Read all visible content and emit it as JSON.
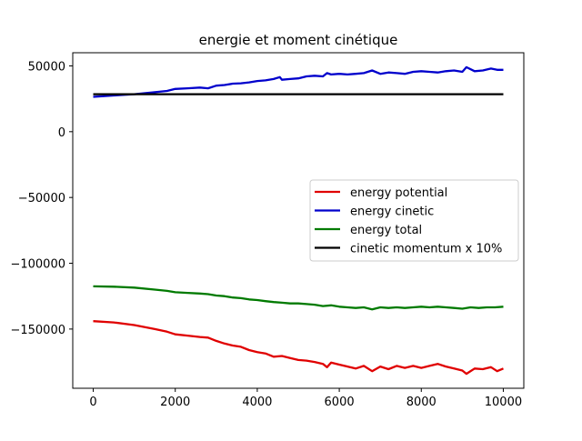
{
  "chart_data": {
    "type": "line",
    "title": "energie et moment cinétique",
    "xlabel": "",
    "ylabel": "",
    "xlim": [
      -500,
      10500
    ],
    "ylim": [
      -195000,
      60000
    ],
    "xticks": [
      0,
      2000,
      4000,
      6000,
      8000,
      10000
    ],
    "xtick_labels": [
      "0",
      "2000",
      "4000",
      "6000",
      "8000",
      "10000"
    ],
    "yticks": [
      50000,
      0,
      -50000,
      -100000,
      -150000
    ],
    "ytick_labels": [
      "50000",
      "0",
      "−50000",
      "−100000",
      "−150000"
    ],
    "grid": false,
    "legend_position": "center-right",
    "series": [
      {
        "name": "energy potential",
        "color": "#e00000",
        "x": [
          0,
          500,
          1000,
          1500,
          1800,
          2000,
          2300,
          2600,
          2800,
          3000,
          3200,
          3400,
          3600,
          3800,
          4000,
          4200,
          4400,
          4600,
          4800,
          5000,
          5200,
          5400,
          5600,
          5700,
          5800,
          6000,
          6200,
          6400,
          6600,
          6800,
          7000,
          7200,
          7400,
          7600,
          7800,
          8000,
          8200,
          8400,
          8600,
          8800,
          9000,
          9100,
          9300,
          9500,
          9700,
          9850,
          10000
        ],
        "y": [
          -144000,
          -145000,
          -147000,
          -150000,
          -152000,
          -154000,
          -155000,
          -156000,
          -156500,
          -159000,
          -161000,
          -162500,
          -163500,
          -166000,
          -167500,
          -168500,
          -171000,
          -170500,
          -172000,
          -173500,
          -174000,
          -175000,
          -176500,
          -179000,
          -175500,
          -177000,
          -178500,
          -180000,
          -178000,
          -182000,
          -178500,
          -180500,
          -178000,
          -179500,
          -178000,
          -179500,
          -178000,
          -176500,
          -178500,
          -180000,
          -181500,
          -184000,
          -180000,
          -180500,
          -179000,
          -182000,
          -180000
        ]
      },
      {
        "name": "energy cinetic",
        "color": "#0000cc",
        "x": [
          0,
          500,
          1000,
          1500,
          1800,
          2000,
          2300,
          2600,
          2800,
          3000,
          3200,
          3400,
          3600,
          3800,
          4000,
          4200,
          4400,
          4550,
          4600,
          4800,
          5000,
          5200,
          5400,
          5600,
          5700,
          5800,
          6000,
          6200,
          6400,
          6600,
          6800,
          7000,
          7200,
          7400,
          7600,
          7800,
          8000,
          8200,
          8400,
          8600,
          8800,
          9000,
          9100,
          9300,
          9500,
          9700,
          9850,
          10000
        ],
        "y": [
          26500,
          27500,
          28500,
          30000,
          31000,
          32500,
          33000,
          33500,
          33000,
          35000,
          35500,
          36500,
          36800,
          37500,
          38500,
          39000,
          40000,
          41500,
          39500,
          40000,
          40500,
          42000,
          42500,
          42000,
          44500,
          43500,
          44000,
          43500,
          44000,
          44500,
          46500,
          44000,
          45000,
          44500,
          44000,
          45500,
          46000,
          45500,
          45000,
          46000,
          46500,
          45500,
          49000,
          46000,
          46500,
          48000,
          47000,
          47000
        ]
      },
      {
        "name": "energy total",
        "color": "#007a00",
        "x": [
          0,
          500,
          1000,
          1500,
          1800,
          2000,
          2300,
          2600,
          2800,
          3000,
          3200,
          3400,
          3600,
          3800,
          4000,
          4200,
          4400,
          4600,
          4800,
          5000,
          5200,
          5400,
          5600,
          5800,
          6000,
          6200,
          6400,
          6600,
          6800,
          7000,
          7200,
          7400,
          7600,
          7800,
          8000,
          8200,
          8400,
          8600,
          8800,
          9000,
          9200,
          9400,
          9600,
          9800,
          10000
        ],
        "y": [
          -117500,
          -117800,
          -118500,
          -120000,
          -121000,
          -122000,
          -122500,
          -123000,
          -123500,
          -124500,
          -125000,
          -126000,
          -126500,
          -127500,
          -128000,
          -128800,
          -129500,
          -130000,
          -130500,
          -130500,
          -131000,
          -131500,
          -132500,
          -132000,
          -133000,
          -133500,
          -134000,
          -133500,
          -135000,
          -133500,
          -134000,
          -133500,
          -134000,
          -133500,
          -133000,
          -133500,
          -133000,
          -133500,
          -134000,
          -134500,
          -133500,
          -134000,
          -133500,
          -133500,
          -133000
        ]
      },
      {
        "name": "cinetic momentum x 10%",
        "color": "#000000",
        "x": [
          0,
          10000
        ],
        "y": [
          28500,
          28500
        ]
      }
    ]
  }
}
